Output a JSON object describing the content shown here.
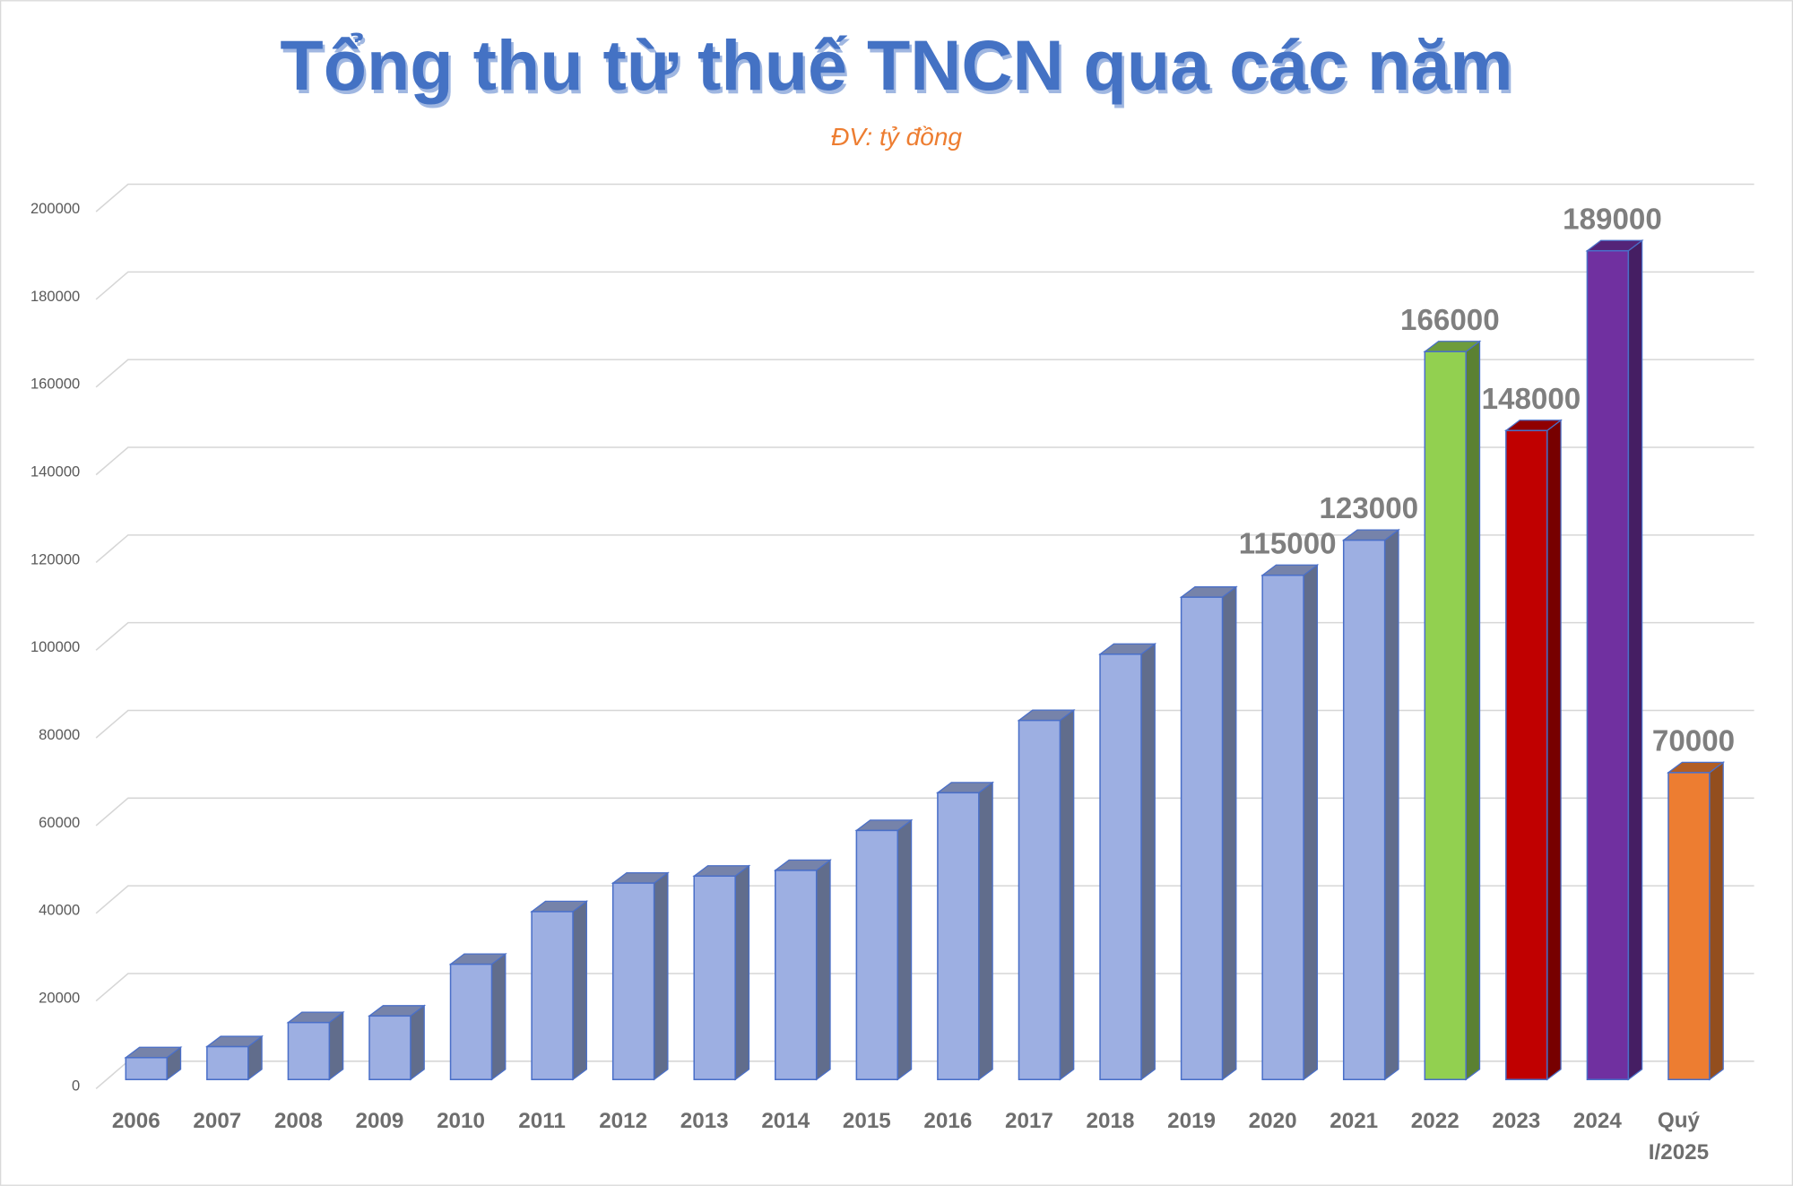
{
  "chart_data": {
    "type": "bar3d",
    "title": "Tổng thu từ thuế TNCN qua các năm",
    "subtitle": "ĐV: tỷ đồng",
    "categories": [
      "2006",
      "2007",
      "2008",
      "2009",
      "2010",
      "2011",
      "2012",
      "2013",
      "2014",
      "2015",
      "2016",
      "2017",
      "2018",
      "2019",
      "2020",
      "2021",
      "2022",
      "2023",
      "2024",
      "Quý I/2025"
    ],
    "values": [
      5000,
      7500,
      13000,
      14500,
      26300,
      38300,
      44800,
      46400,
      47700,
      56800,
      65400,
      81900,
      97000,
      110000,
      115000,
      123000,
      166000,
      148000,
      189000,
      70000
    ],
    "value_labels": [
      null,
      null,
      null,
      null,
      null,
      null,
      null,
      null,
      null,
      null,
      null,
      null,
      null,
      null,
      "115000",
      "123000",
      "166000",
      "148000",
      "189000",
      "70000"
    ],
    "colors": [
      "#9dafe2",
      "#9dafe2",
      "#9dafe2",
      "#9dafe2",
      "#9dafe2",
      "#9dafe2",
      "#9dafe2",
      "#9dafe2",
      "#9dafe2",
      "#9dafe2",
      "#9dafe2",
      "#9dafe2",
      "#9dafe2",
      "#9dafe2",
      "#9dafe2",
      "#9dafe2",
      "#92d050",
      "#c00000",
      "#7030a0",
      "#ed7d31"
    ],
    "ylim": [
      0,
      200000
    ],
    "yticks": [
      0,
      20000,
      40000,
      60000,
      80000,
      100000,
      120000,
      140000,
      160000,
      180000,
      200000
    ],
    "grid": true
  }
}
